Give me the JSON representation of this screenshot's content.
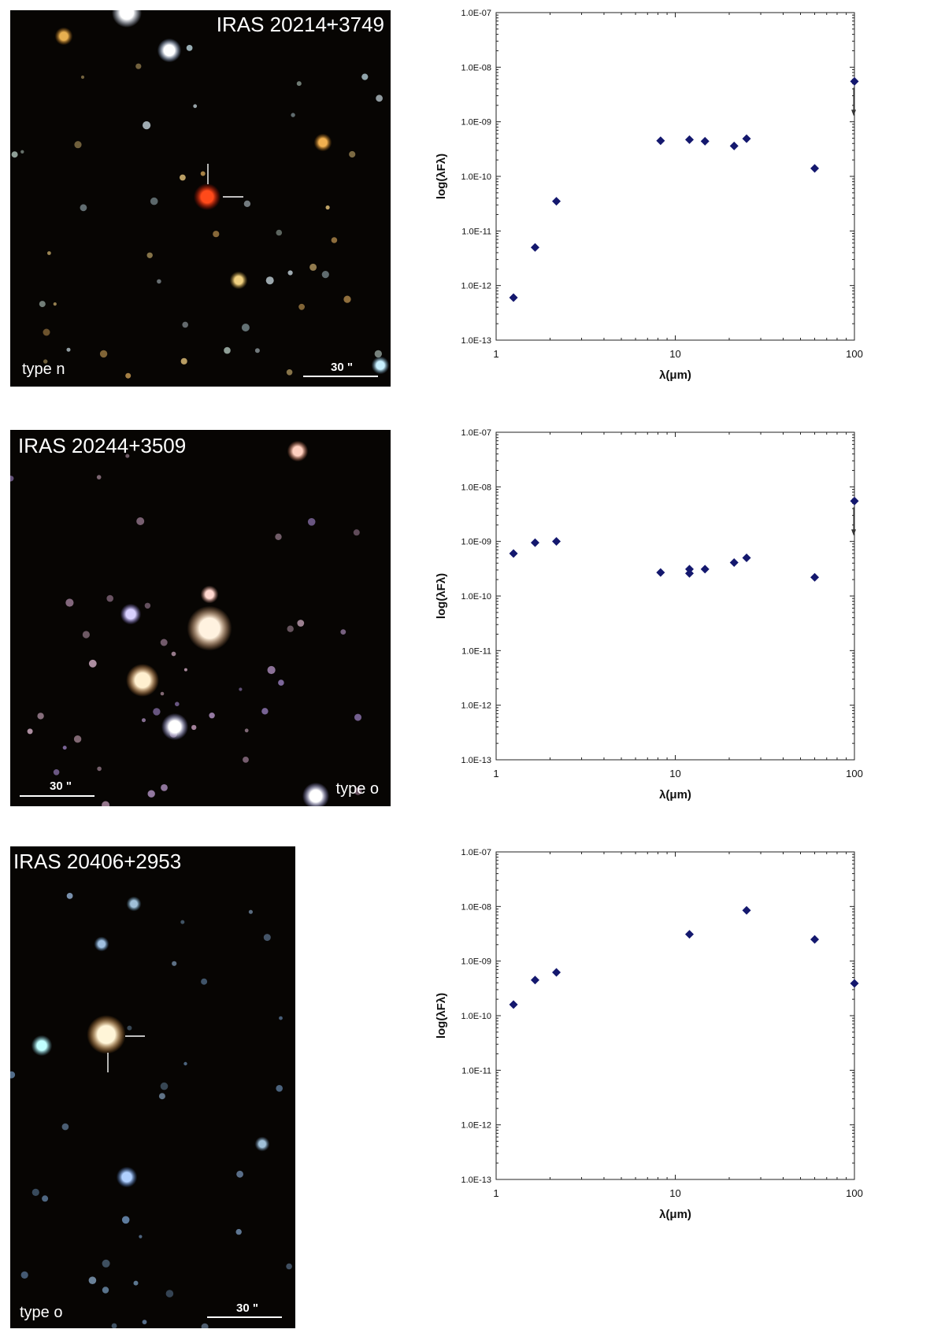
{
  "panels": [
    {
      "image": {
        "name": "IRAS 20214+3749",
        "type_label": "type n",
        "scale_label": "30 \""
      },
      "chart_data": {
        "type": "scatter",
        "xlabel": "λ(μm)",
        "ylabel": "log(λFλ)",
        "x_scale": "log",
        "y_scale": "log",
        "xlim": [
          1,
          100
        ],
        "ylim": [
          1e-13,
          1e-07
        ],
        "x_ticks": [
          "1",
          "10",
          "100"
        ],
        "y_ticks": [
          "1.0E-13",
          "1.0E-12",
          "1.0E-11",
          "1.0E-10",
          "1.0E-09",
          "1.0E-08",
          "1.0E-07"
        ],
        "marker_color": "#14186e",
        "points": [
          {
            "x": 1.25,
            "y": 6e-13
          },
          {
            "x": 1.65,
            "y": 5e-12
          },
          {
            "x": 2.17,
            "y": 3.5e-11
          },
          {
            "x": 8.28,
            "y": 4.5e-10
          },
          {
            "x": 12.0,
            "y": 4.7e-10
          },
          {
            "x": 14.65,
            "y": 4.4e-10
          },
          {
            "x": 21.3,
            "y": 3.6e-10
          },
          {
            "x": 25.0,
            "y": 4.9e-10
          },
          {
            "x": 60.0,
            "y": 1.4e-10
          },
          {
            "x": 100.0,
            "y": 5.5e-09,
            "upper_limit": true
          }
        ]
      }
    },
    {
      "image": {
        "name": "IRAS 20244+3509",
        "type_label": "type o",
        "scale_label": "30 \""
      },
      "chart_data": {
        "type": "scatter",
        "xlabel": "λ(μm)",
        "ylabel": "log(λFλ)",
        "x_scale": "log",
        "y_scale": "log",
        "xlim": [
          1,
          100
        ],
        "ylim": [
          1e-13,
          1e-07
        ],
        "x_ticks": [
          "1",
          "10",
          "100"
        ],
        "y_ticks": [
          "1.0E-13",
          "1.0E-12",
          "1.0E-11",
          "1.0E-10",
          "1.0E-09",
          "1.0E-08",
          "1.0E-07"
        ],
        "marker_color": "#14186e",
        "points": [
          {
            "x": 1.25,
            "y": 6e-10
          },
          {
            "x": 1.65,
            "y": 9.5e-10
          },
          {
            "x": 2.17,
            "y": 1e-09
          },
          {
            "x": 8.28,
            "y": 2.7e-10
          },
          {
            "x": 12.0,
            "y": 3.1e-10
          },
          {
            "x": 12.0,
            "y": 2.6e-10
          },
          {
            "x": 14.65,
            "y": 3.1e-10
          },
          {
            "x": 21.3,
            "y": 4.1e-10
          },
          {
            "x": 25.0,
            "y": 5e-10
          },
          {
            "x": 60.0,
            "y": 2.2e-10
          },
          {
            "x": 100.0,
            "y": 5.5e-09,
            "upper_limit": true
          }
        ]
      }
    },
    {
      "image": {
        "name": "IRAS 20406+2953",
        "type_label": "type o",
        "scale_label": "30 \""
      },
      "chart_data": {
        "type": "scatter",
        "xlabel": "λ(μm)",
        "ylabel": "log(λFλ)",
        "x_scale": "log",
        "y_scale": "log",
        "xlim": [
          1,
          100
        ],
        "ylim": [
          1e-13,
          1e-07
        ],
        "x_ticks": [
          "1",
          "10",
          "100"
        ],
        "y_ticks": [
          "1.0E-13",
          "1.0E-12",
          "1.0E-11",
          "1.0E-10",
          "1.0E-09",
          "1.0E-08",
          "1.0E-07"
        ],
        "marker_color": "#14186e",
        "points": [
          {
            "x": 1.25,
            "y": 1.6e-10
          },
          {
            "x": 1.65,
            "y": 4.5e-10
          },
          {
            "x": 2.17,
            "y": 6.2e-10
          },
          {
            "x": 12.0,
            "y": 3.1e-09
          },
          {
            "x": 25.0,
            "y": 8.5e-09
          },
          {
            "x": 60.0,
            "y": 2.5e-09
          },
          {
            "x": 100.0,
            "y": 3.9e-10
          }
        ]
      }
    }
  ]
}
